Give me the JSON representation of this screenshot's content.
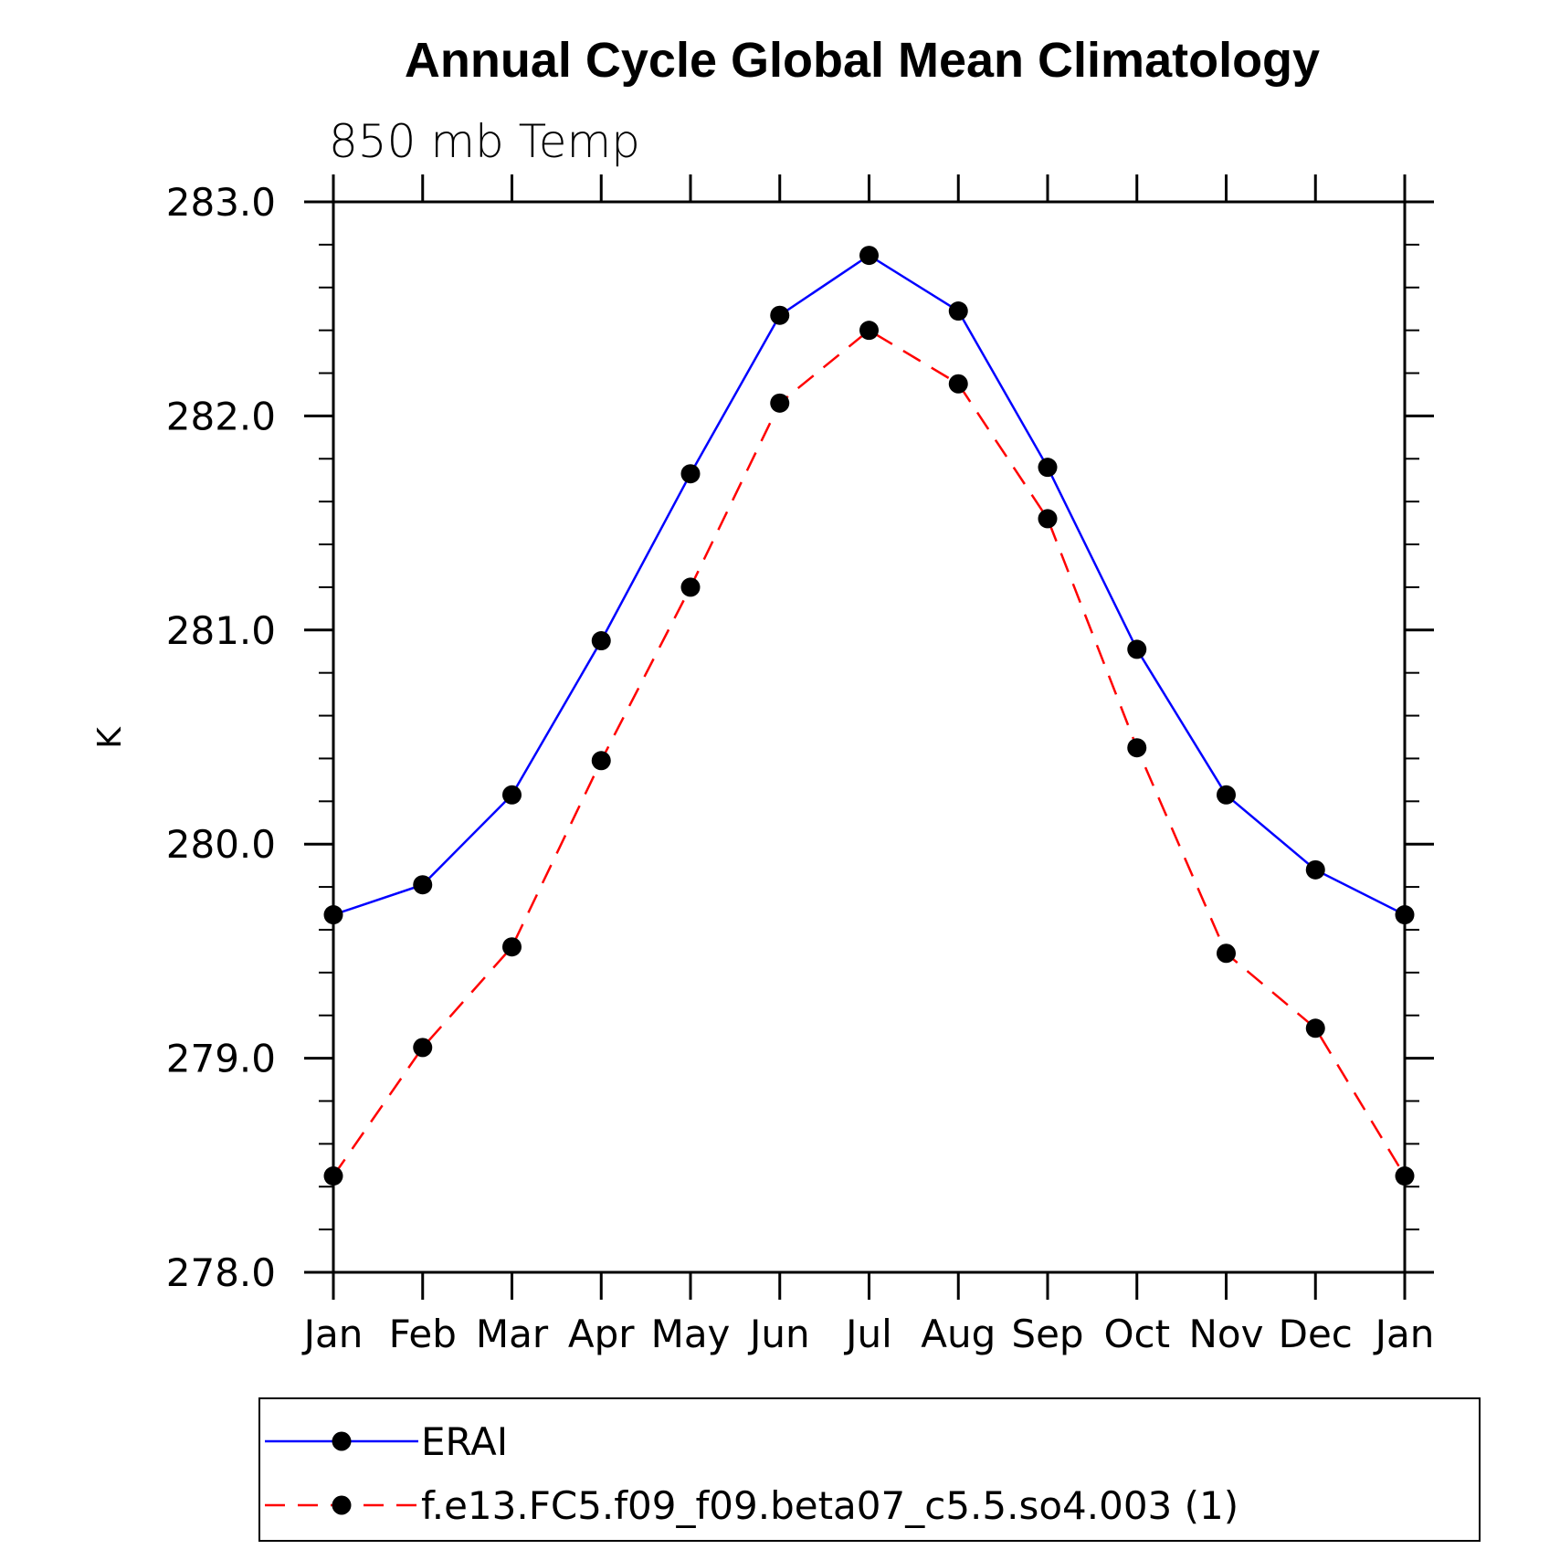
{
  "chart_data": {
    "type": "line",
    "title": "Annual Cycle Global Mean Climatology",
    "subtitle": "850 mb Temp",
    "xlabel": "",
    "ylabel": "K",
    "categories": [
      "Jan",
      "Feb",
      "Mar",
      "Apr",
      "May",
      "Jun",
      "Jul",
      "Aug",
      "Sep",
      "Oct",
      "Nov",
      "Dec",
      "Jan"
    ],
    "ylim": [
      278.0,
      283.0
    ],
    "yticks": [
      "278.0",
      "279.0",
      "280.0",
      "281.0",
      "282.0",
      "283.0"
    ],
    "y_minor_step": 0.2,
    "grid": false,
    "legend_position": "bottom",
    "series": [
      {
        "name": "ERAI",
        "color": "#0000ff",
        "line_style": "solid",
        "marker": "filled-circle",
        "values": [
          279.67,
          279.81,
          280.23,
          280.95,
          281.73,
          282.47,
          282.75,
          282.49,
          281.76,
          280.91,
          280.23,
          279.88,
          279.67
        ]
      },
      {
        "name": "f.e13.FC5.f09_f09.beta07_c5.5.so4.003 (1)",
        "color": "#ff0000",
        "line_style": "dashed",
        "marker": "filled-circle",
        "values": [
          278.45,
          279.05,
          279.52,
          280.39,
          281.2,
          282.06,
          282.4,
          282.15,
          281.52,
          280.45,
          279.49,
          279.14,
          278.45
        ]
      }
    ]
  }
}
